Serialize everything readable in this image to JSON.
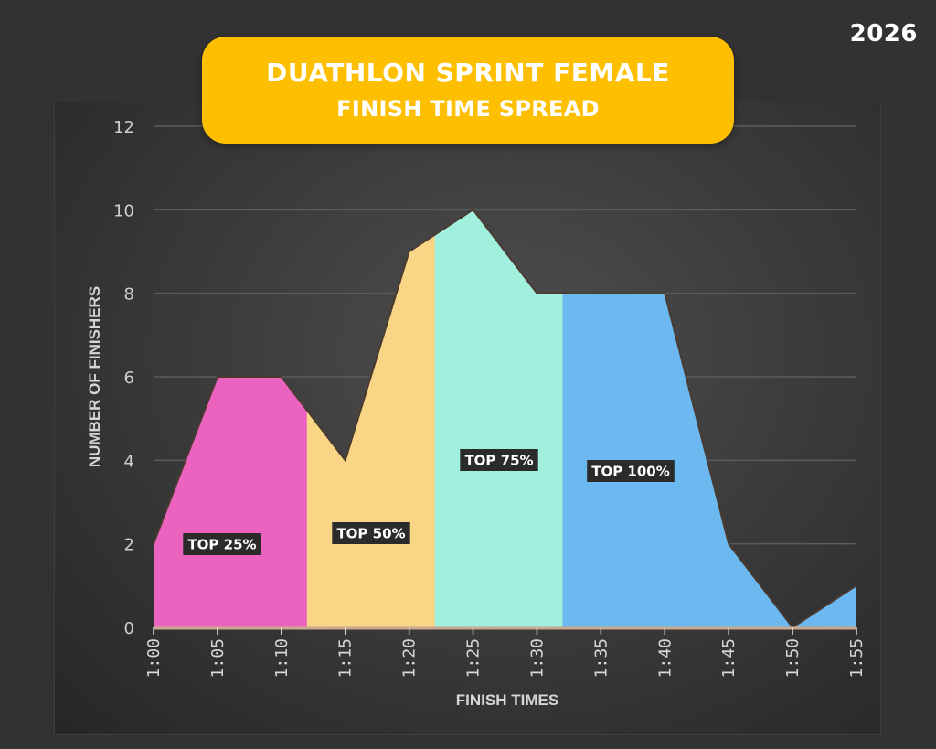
{
  "year": "2026",
  "title": {
    "line1": "DUATHLON SPRINT FEMALE",
    "line2": "FINISH TIME SPREAD"
  },
  "colors": {
    "title_bg": "#fdbf00",
    "top25": "#ec62bf",
    "top50": "#f8d685",
    "top75": "#a0f0dd",
    "top100": "#6bb9f0",
    "background": "#323232"
  },
  "chart_data": {
    "type": "area",
    "title": "DUATHLON SPRINT FEMALE FINISH TIME SPREAD",
    "xlabel": "FINISH TIMES",
    "ylabel": "NUMBER OF FINISHERS",
    "categories": [
      "1:00",
      "1:05",
      "1:10",
      "1:15",
      "1:20",
      "1:25",
      "1:30",
      "1:35",
      "1:40",
      "1:45",
      "1:50",
      "1:55"
    ],
    "values": [
      2,
      6,
      6,
      4,
      9,
      10,
      8,
      8,
      8,
      2,
      0,
      1
    ],
    "ylim": [
      0,
      12
    ],
    "yticks": [
      0,
      2,
      4,
      6,
      8,
      10,
      12
    ],
    "grid": true,
    "legend": "none",
    "segments": [
      {
        "label": "TOP 25%",
        "from": "1:00",
        "to": "1:12",
        "color": "#ec62bf"
      },
      {
        "label": "TOP 50%",
        "from": "1:12",
        "to": "1:22",
        "color": "#f8d685"
      },
      {
        "label": "TOP 75%",
        "from": "1:22",
        "to": "1:32",
        "color": "#a0f0dd"
      },
      {
        "label": "TOP 100%",
        "from": "1:32",
        "to": "1:55",
        "color": "#6bb9f0"
      }
    ],
    "year": "2026"
  }
}
